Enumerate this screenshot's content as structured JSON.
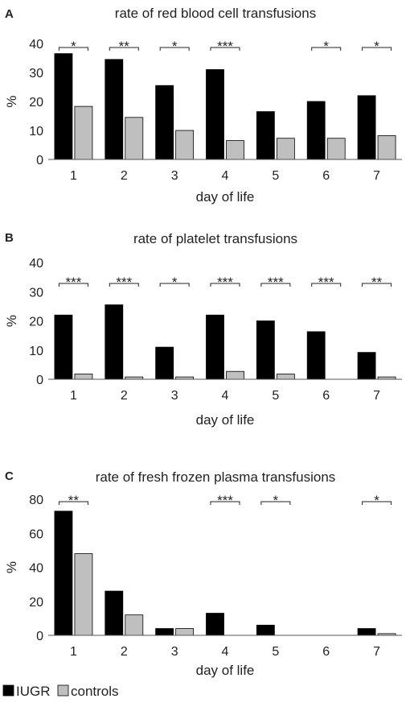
{
  "legend": {
    "items": [
      {
        "label": "IUGR",
        "color": "#000000"
      },
      {
        "label": "controls",
        "color": "#bfbfbf"
      }
    ]
  },
  "chart_data": [
    {
      "panel": "A",
      "type": "bar",
      "title": "rate of red blood cell transfusions",
      "xlabel": "day of life",
      "ylabel": "%",
      "categories": [
        "1",
        "2",
        "3",
        "4",
        "5",
        "6",
        "7"
      ],
      "ylim": [
        0,
        40
      ],
      "yticks": [
        0,
        10,
        20,
        30,
        40
      ],
      "series": [
        {
          "name": "IUGR",
          "color": "#000000",
          "values": [
            36.5,
            34.5,
            25.5,
            31,
            16.5,
            20,
            22
          ]
        },
        {
          "name": "controls",
          "color": "#bfbfbf",
          "values": [
            18.3,
            14.5,
            10,
            6.5,
            7.3,
            7.3,
            8.2
          ]
        }
      ],
      "significance": [
        "*",
        "**",
        "*",
        "***",
        "",
        "*",
        "*"
      ]
    },
    {
      "panel": "B",
      "type": "bar",
      "title": "rate of platelet transfusions",
      "xlabel": "day of life",
      "ylabel": "%",
      "categories": [
        "1",
        "2",
        "3",
        "4",
        "5",
        "6",
        "7"
      ],
      "ylim": [
        0,
        40
      ],
      "yticks": [
        0,
        10,
        20,
        30,
        40
      ],
      "series": [
        {
          "name": "IUGR",
          "color": "#000000",
          "values": [
            22,
            25.5,
            11,
            22,
            20,
            16.3,
            9.2
          ]
        },
        {
          "name": "controls",
          "color": "#bfbfbf",
          "values": [
            1.8,
            0.8,
            0.8,
            2.7,
            1.8,
            0,
            0.8
          ]
        }
      ],
      "significance": [
        "***",
        "***",
        "*",
        "***",
        "***",
        "***",
        "**"
      ]
    },
    {
      "panel": "C",
      "type": "bar",
      "title": "rate of fresh frozen plasma transfusions",
      "xlabel": "day of life",
      "ylabel": "%",
      "categories": [
        "1",
        "2",
        "3",
        "4",
        "5",
        "6",
        "7"
      ],
      "ylim": [
        0,
        80
      ],
      "yticks": [
        0,
        20,
        40,
        60,
        80
      ],
      "series": [
        {
          "name": "IUGR",
          "color": "#000000",
          "values": [
            73,
            26,
            4,
            13,
            6,
            0,
            4
          ]
        },
        {
          "name": "controls",
          "color": "#bfbfbf",
          "values": [
            48,
            12,
            4,
            0,
            0,
            0,
            1
          ]
        }
      ],
      "significance": [
        "**",
        "",
        "",
        "***",
        "*",
        "",
        "*"
      ]
    }
  ]
}
